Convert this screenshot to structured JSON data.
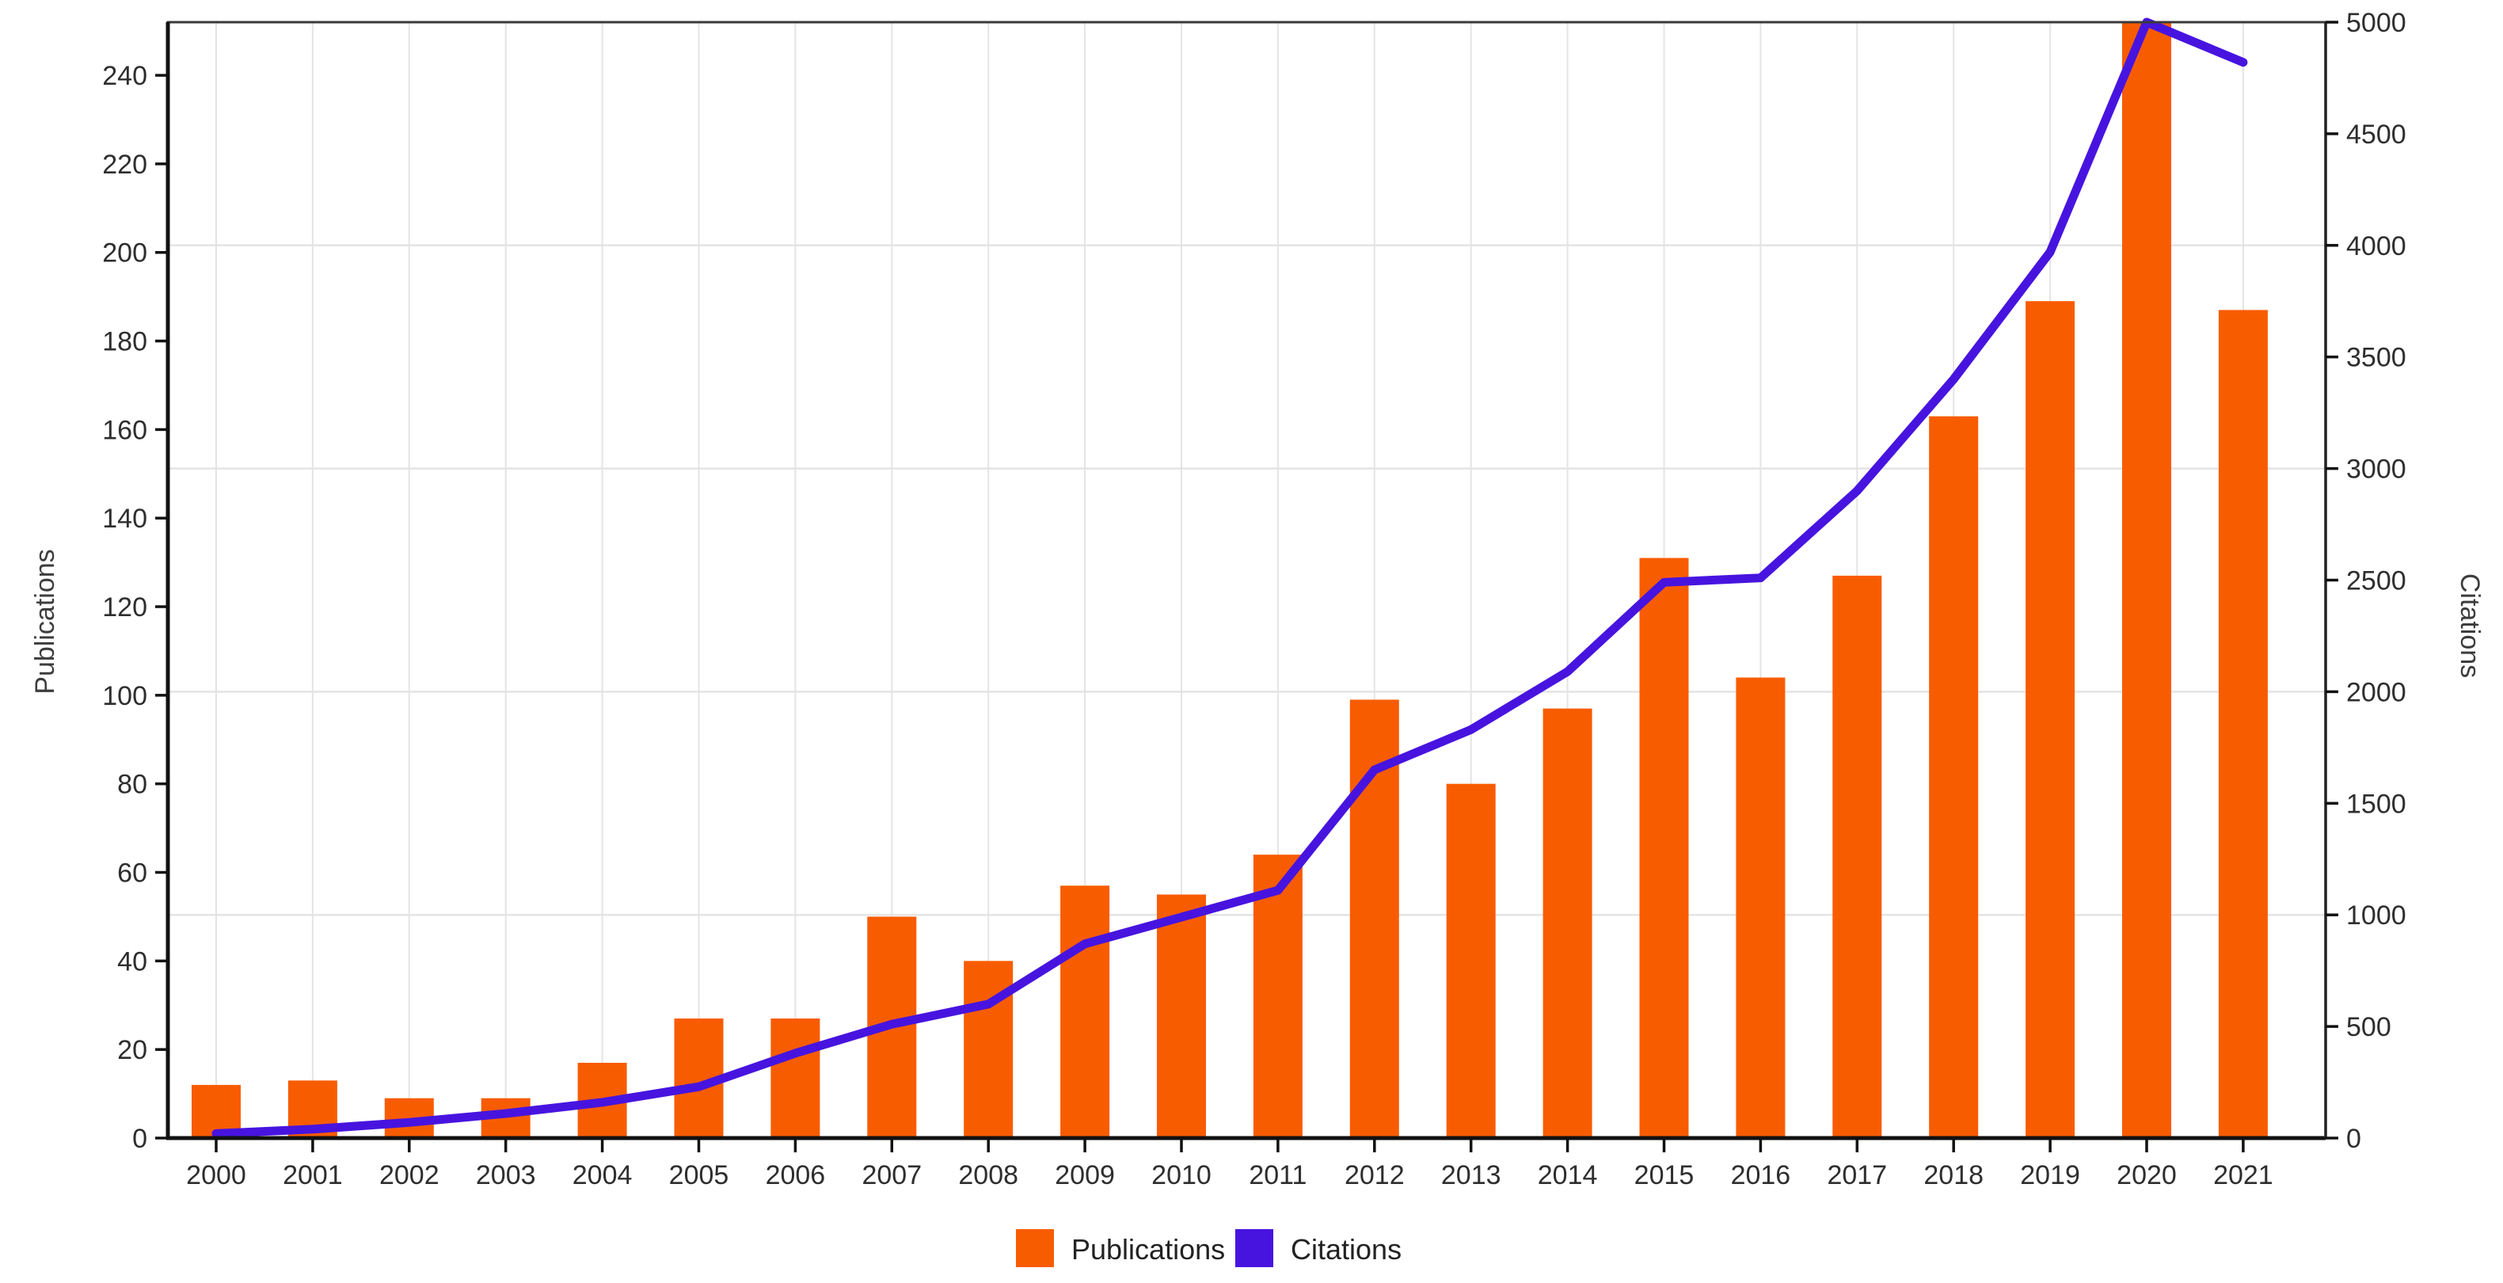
{
  "chart_data": {
    "type": "bar",
    "title": "",
    "categories": [
      "2000",
      "2001",
      "2002",
      "2003",
      "2004",
      "2005",
      "2006",
      "2007",
      "2008",
      "2009",
      "2010",
      "2011",
      "2012",
      "2013",
      "2014",
      "2015",
      "2016",
      "2017",
      "2018",
      "2019",
      "2020",
      "2021"
    ],
    "series": [
      {
        "name": "Publications",
        "kind": "bar",
        "axis": "left",
        "color": "#F85C01",
        "values": [
          12,
          13,
          9,
          9,
          17,
          27,
          27,
          50,
          40,
          57,
          55,
          64,
          99,
          80,
          97,
          131,
          104,
          127,
          163,
          189,
          255,
          187
        ]
      },
      {
        "name": "Citations",
        "kind": "line",
        "axis": "right",
        "color": "#4714DF",
        "values": [
          20,
          40,
          70,
          110,
          160,
          230,
          380,
          510,
          600,
          870,
          990,
          1110,
          1650,
          1830,
          2090,
          2490,
          2510,
          2900,
          3400,
          3970,
          5000,
          4820
        ]
      }
    ],
    "left_axis": {
      "label": "Publications",
      "min": 0,
      "max": 252,
      "tick_step": 20,
      "ticks": [
        0,
        20,
        40,
        60,
        80,
        100,
        120,
        140,
        160,
        180,
        200,
        220,
        240
      ]
    },
    "right_axis": {
      "label": "Citations",
      "min": 0,
      "max": 5000,
      "tick_step": 500,
      "ticks": [
        0,
        500,
        1000,
        1500,
        2000,
        2500,
        3000,
        3500,
        4000,
        4500,
        5000
      ]
    },
    "grid": {
      "horizontal_citation_lines": [
        1000,
        2000,
        3000,
        4000
      ],
      "vertical_per_year": true,
      "color": "#e4e4e4"
    },
    "legend": {
      "position": "bottom",
      "entries": [
        "Publications",
        "Citations"
      ]
    },
    "annotations": {
      "publications_2020": "Bar clipped at top of plot area (exceeds visible axis maximum ~252)"
    }
  }
}
